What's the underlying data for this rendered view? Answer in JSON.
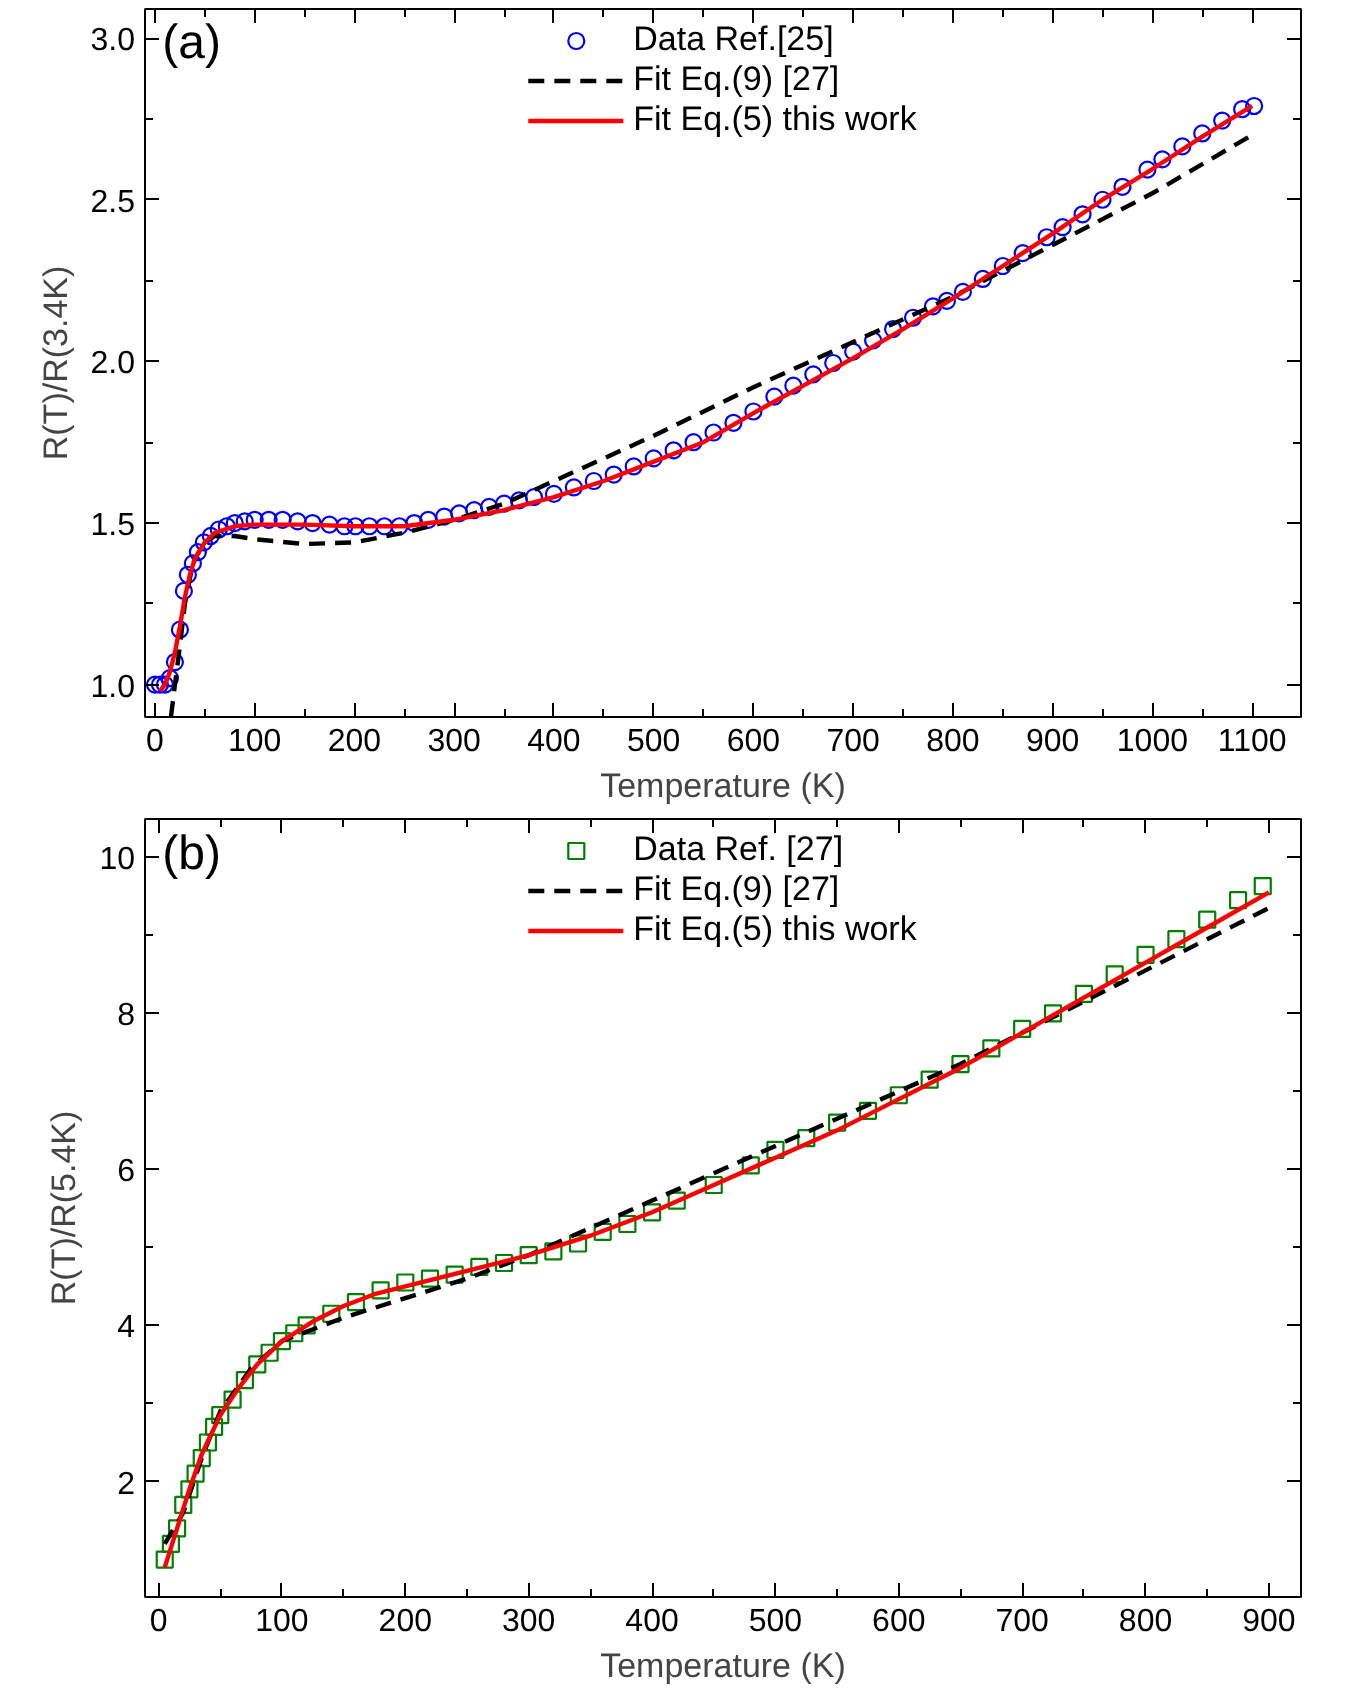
{
  "chart_data": [
    {
      "type": "line",
      "xlabel": "Temperature (K)",
      "ylabel": "R(T)/R(3.4K)",
      "annotations": [
        "(a)"
      ],
      "xlim": [
        -10,
        1149
      ],
      "ylim": [
        0.9,
        3.09
      ],
      "xticks": [
        0,
        100,
        200,
        300,
        400,
        500,
        600,
        700,
        800,
        900,
        1000,
        1100
      ],
      "yticks": [
        {
          "value": 1.0,
          "label": "1.0"
        },
        1.5,
        {
          "value": 2.0,
          "label": "2.0"
        },
        2.5,
        {
          "value": 3.0,
          "label": "3.0"
        }
      ],
      "legend": "top",
      "grid": false,
      "series": [
        {
          "name": "Data Ref.[25]",
          "type": "scatter",
          "marker": "circle",
          "color": "#0000ff",
          "x": [
            0,
            5,
            10,
            15,
            20,
            25,
            29,
            33,
            38,
            43,
            49,
            56,
            64,
            72,
            80,
            90,
            100,
            114,
            128,
            143,
            158,
            175,
            190,
            201,
            215,
            230,
            245,
            260,
            274,
            290,
            305,
            320,
            335,
            350,
            365,
            380,
            400,
            420,
            440,
            460,
            480,
            500,
            520,
            540,
            560,
            580,
            600,
            621,
            640,
            660,
            680,
            700,
            720,
            740,
            760,
            780,
            794,
            810,
            830,
            850,
            870,
            894,
            910,
            930,
            950,
            970,
            995,
            1010,
            1030,
            1050,
            1070,
            1090,
            1102
          ],
          "values": [
            1.0,
            1.0,
            1.0,
            1.02,
            1.07,
            1.17,
            1.29,
            1.34,
            1.375,
            1.41,
            1.44,
            1.46,
            1.48,
            1.49,
            1.5,
            1.505,
            1.51,
            1.51,
            1.51,
            1.505,
            1.5,
            1.495,
            1.49,
            1.49,
            1.49,
            1.49,
            1.49,
            1.5,
            1.51,
            1.52,
            1.53,
            1.54,
            1.55,
            1.56,
            1.57,
            1.58,
            1.59,
            1.61,
            1.63,
            1.65,
            1.675,
            1.7,
            1.725,
            1.75,
            1.78,
            1.81,
            1.845,
            1.891,
            1.925,
            1.96,
            1.995,
            2.03,
            2.065,
            2.1,
            2.135,
            2.17,
            2.187,
            2.215,
            2.255,
            2.295,
            2.335,
            2.384,
            2.415,
            2.455,
            2.5,
            2.54,
            2.593,
            2.625,
            2.665,
            2.705,
            2.745,
            2.78,
            2.79
          ]
        },
        {
          "name": "Fit Eq.(9) [27]",
          "line_style": "dashed",
          "color": "#000000",
          "x": [
            16,
            20,
            25,
            30,
            35,
            40,
            50,
            60,
            80,
            100,
            150,
            200,
            250,
            300,
            350,
            400,
            450,
            500,
            600,
            700,
            800,
            900,
            950,
            1000,
            1100
          ],
          "values": [
            0.9,
            1.0,
            1.12,
            1.25,
            1.33,
            1.39,
            1.44,
            1.46,
            1.46,
            1.45,
            1.435,
            1.44,
            1.47,
            1.51,
            1.56,
            1.63,
            1.7,
            1.77,
            1.92,
            2.06,
            2.2,
            2.36,
            2.44,
            2.52,
            2.7
          ]
        },
        {
          "name": "Fit Eq.(5) this work",
          "line_style": "solid",
          "color": "#ff0000",
          "x": [
            5,
            10,
            15,
            20,
            25,
            30,
            35,
            40,
            50,
            60,
            80,
            100,
            150,
            200,
            250,
            300,
            350,
            400,
            450,
            500,
            550,
            600,
            650,
            700,
            750,
            800,
            850,
            900,
            950,
            1000,
            1050,
            1100
          ],
          "values": [
            0.98,
            1.0,
            1.04,
            1.1,
            1.18,
            1.27,
            1.34,
            1.39,
            1.44,
            1.47,
            1.49,
            1.495,
            1.495,
            1.49,
            1.49,
            1.51,
            1.54,
            1.58,
            1.63,
            1.69,
            1.75,
            1.84,
            1.925,
            2.01,
            2.1,
            2.195,
            2.295,
            2.395,
            2.5,
            2.595,
            2.695,
            2.79
          ]
        }
      ]
    },
    {
      "type": "line",
      "xlabel": "Temperature (K)",
      "ylabel": "R(T)/R(5.4K)",
      "annotations": [
        "(b)"
      ],
      "xlim": [
        -11,
        926
      ],
      "ylim": [
        0.52,
        10.49
      ],
      "xticks": [
        0,
        100,
        200,
        300,
        400,
        500,
        600,
        700,
        800,
        900
      ],
      "yticks": [
        2,
        4,
        6,
        8,
        10
      ],
      "legend": "top",
      "grid": false,
      "series": [
        {
          "name": "Data Ref. [27]",
          "type": "scatter",
          "marker": "square",
          "color": "#008000",
          "x": [
            5,
            10,
            15,
            20,
            25,
            30,
            35,
            40,
            45,
            50,
            60,
            70,
            80,
            90,
            100,
            110,
            120,
            140,
            160,
            180,
            200,
            220,
            240,
            260,
            280,
            300,
            320,
            340,
            360,
            380,
            400,
            420,
            450,
            480,
            500,
            525,
            550,
            575,
            600,
            625,
            650,
            675,
            700,
            725,
            750,
            775,
            800,
            825,
            850,
            875,
            895
          ],
          "values": [
            1.0,
            1.2,
            1.4,
            1.7,
            1.9,
            2.1,
            2.3,
            2.5,
            2.7,
            2.85,
            3.05,
            3.3,
            3.5,
            3.65,
            3.8,
            3.9,
            4.0,
            4.15,
            4.3,
            4.45,
            4.55,
            4.6,
            4.65,
            4.75,
            4.8,
            4.9,
            4.95,
            5.05,
            5.2,
            5.3,
            5.45,
            5.6,
            5.8,
            6.05,
            6.25,
            6.4,
            6.6,
            6.75,
            6.95,
            7.15,
            7.35,
            7.55,
            7.8,
            8.0,
            8.25,
            8.5,
            8.75,
            8.95,
            9.2,
            9.45,
            9.63
          ]
        },
        {
          "name": "Fit Eq.(9) [27]",
          "line_style": "dashed",
          "color": "#000000",
          "x": [
            5,
            20,
            35,
            50,
            75,
            100,
            150,
            200,
            250,
            300,
            350,
            400,
            450,
            500,
            550,
            600,
            650,
            700,
            750,
            800,
            850,
            900
          ],
          "values": [
            1.2,
            1.6,
            2.3,
            2.9,
            3.45,
            3.8,
            4.1,
            4.35,
            4.6,
            4.9,
            5.25,
            5.6,
            5.95,
            6.3,
            6.65,
            7.0,
            7.35,
            7.75,
            8.15,
            8.55,
            8.95,
            9.35
          ]
        },
        {
          "name": "Fit Eq.(5) this work",
          "line_style": "solid",
          "color": "#ff0000",
          "x": [
            5,
            15,
            25,
            35,
            50,
            65,
            80,
            100,
            125,
            150,
            175,
            200,
            250,
            300,
            350,
            400,
            450,
            500,
            550,
            600,
            650,
            700,
            750,
            800,
            850,
            900
          ],
          "values": [
            0.9,
            1.4,
            1.9,
            2.35,
            2.85,
            3.2,
            3.5,
            3.8,
            4.05,
            4.25,
            4.4,
            4.5,
            4.7,
            4.9,
            5.15,
            5.45,
            5.8,
            6.15,
            6.5,
            6.9,
            7.3,
            7.75,
            8.2,
            8.65,
            9.1,
            9.55
          ]
        }
      ]
    }
  ]
}
